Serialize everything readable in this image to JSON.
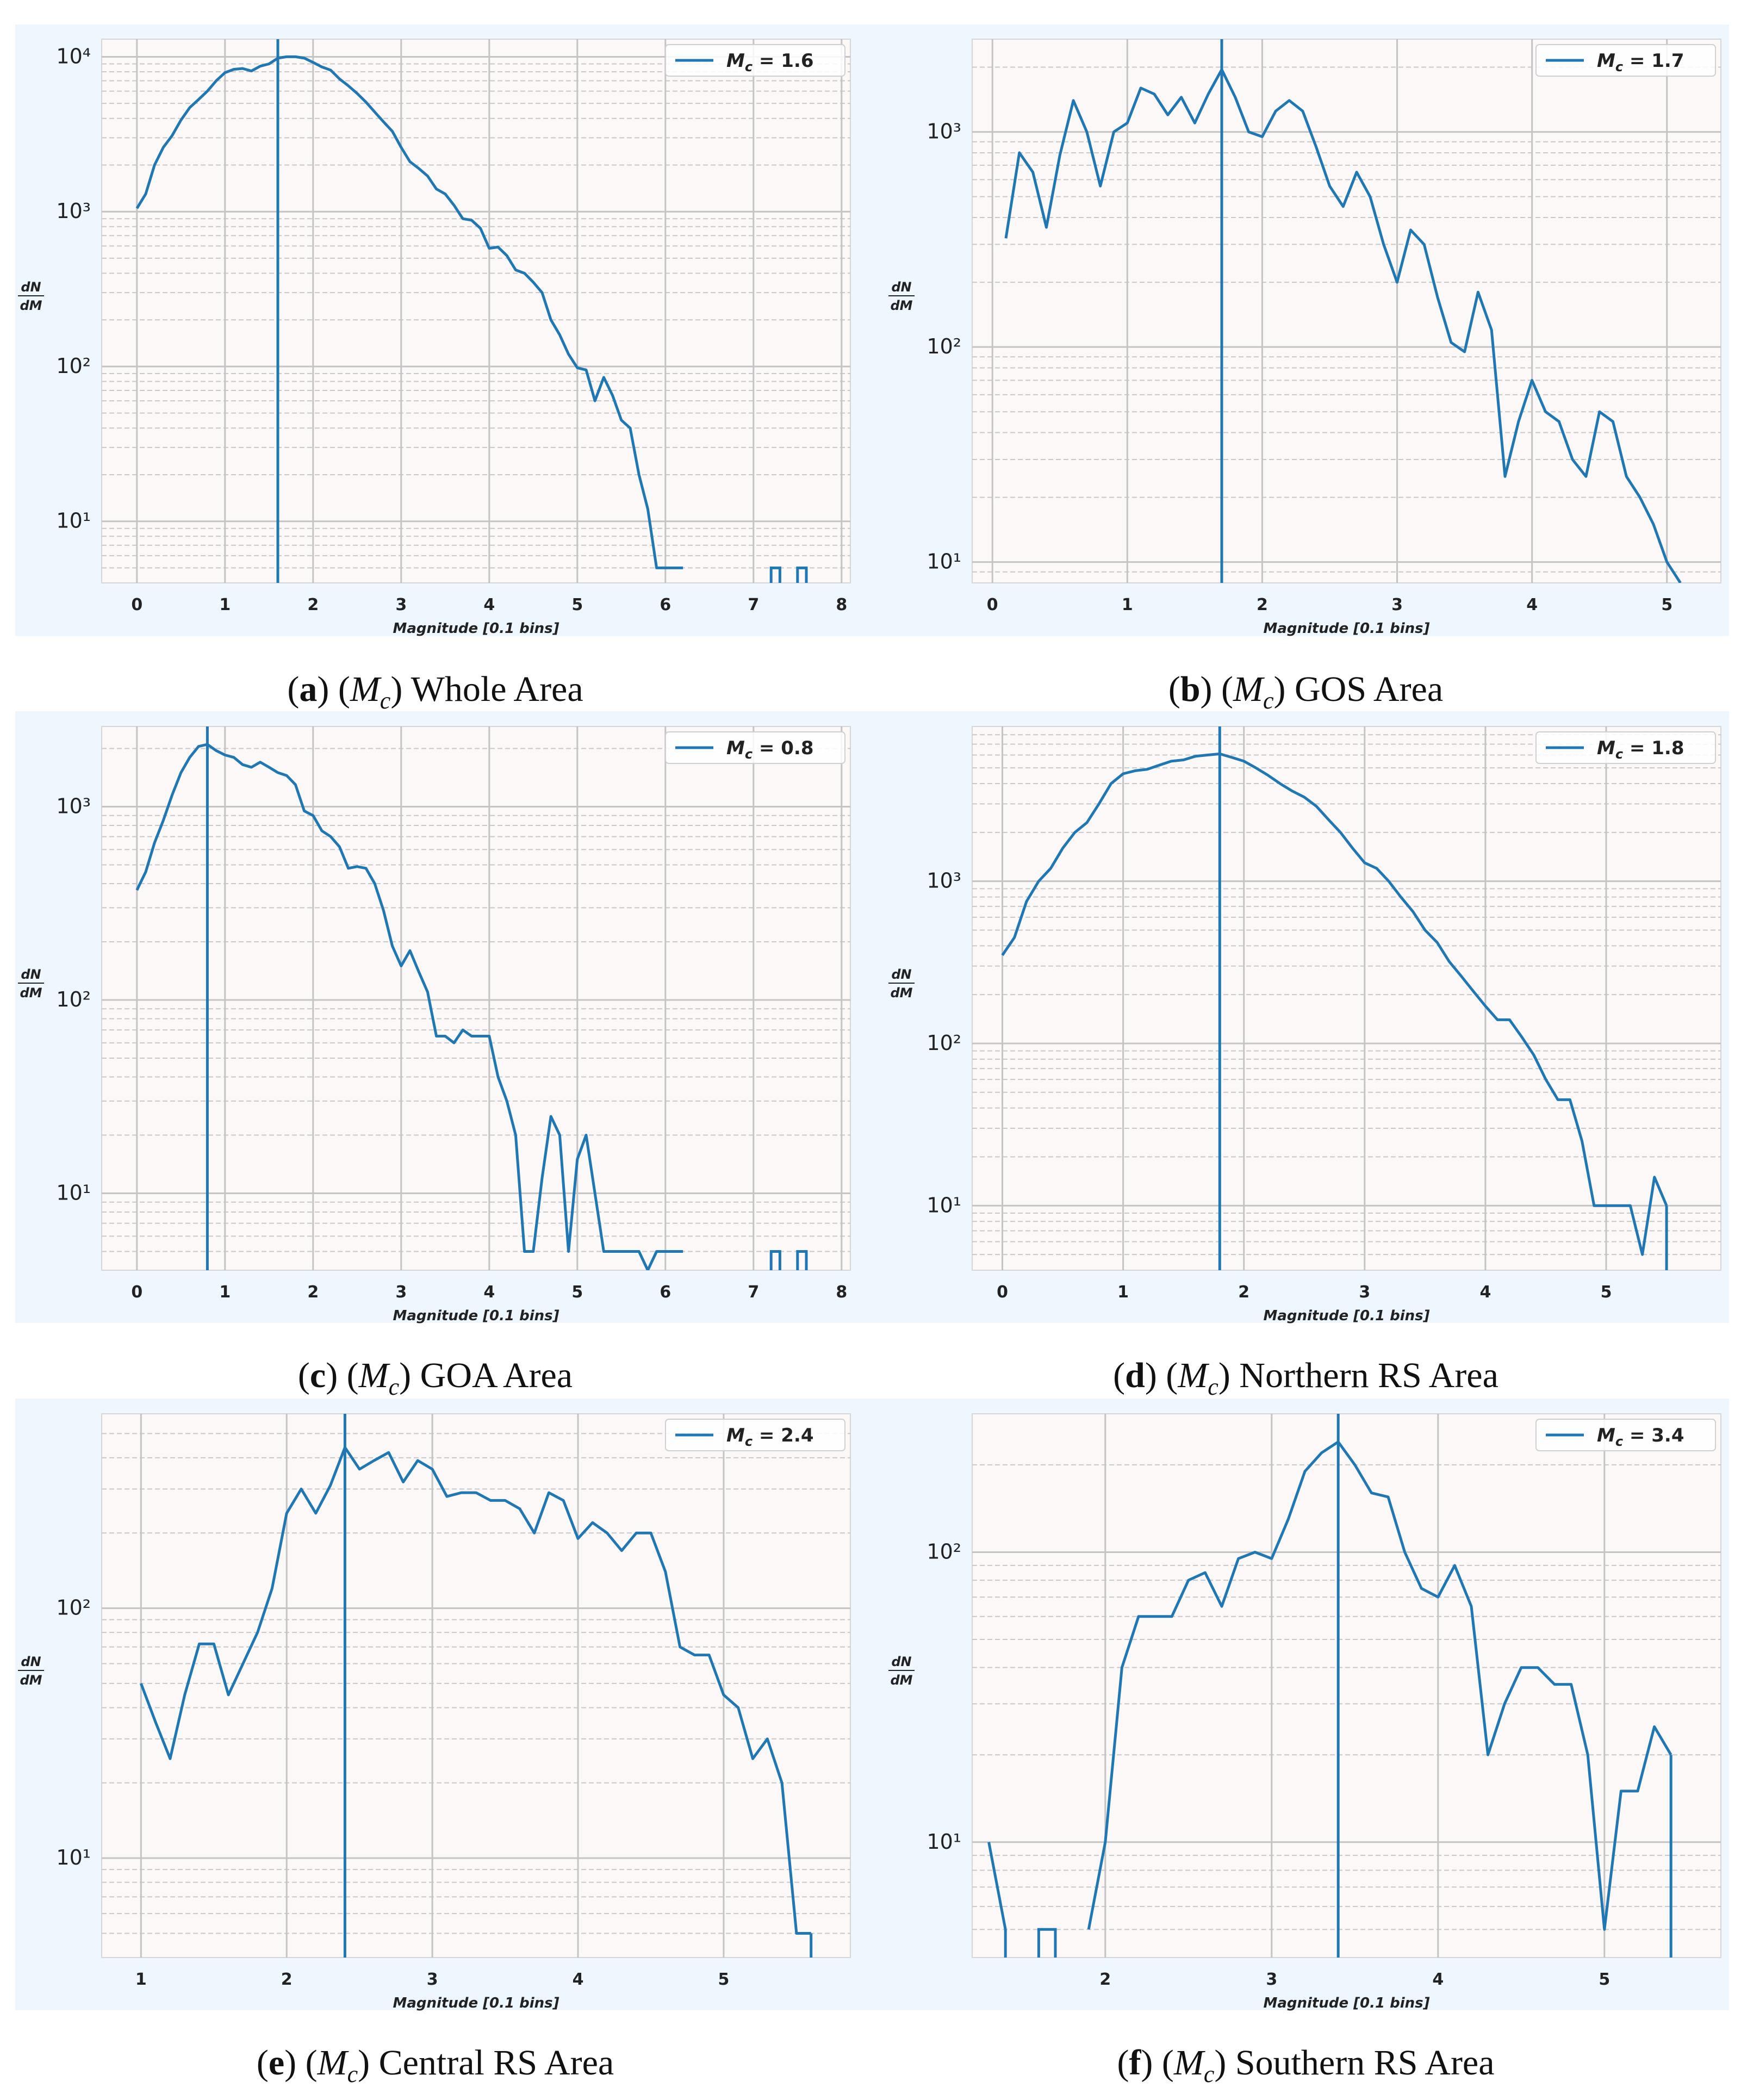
{
  "colors": {
    "series": "#1f77b4",
    "plot_bg": "#fcf8f8",
    "panel_bg": "#eef6fe",
    "grid_major": "#c4c4c4",
    "grid_minor": "#c8c8c8"
  },
  "chart_data": [
    {
      "id": "a",
      "type": "line",
      "xlabel": "Magnitude [0.1 bins]",
      "ylabel_num": "dN",
      "ylabel_den": "dM",
      "yscale": "log",
      "xlim": [
        -0.4,
        8.1
      ],
      "ylim": [
        4,
        13000
      ],
      "xticks": [
        0,
        1,
        2,
        3,
        4,
        5,
        6,
        7,
        8
      ],
      "xtick_labels": [
        "0",
        "1",
        "2",
        "3",
        "4",
        "5",
        "6",
        "7",
        "8"
      ],
      "yticks": [
        10,
        100,
        1000,
        10000
      ],
      "ytick_labels": [
        "10¹",
        "10²",
        "10³",
        "10⁴"
      ],
      "mc": 1.6,
      "legend": "M_c = 1.6",
      "legend_label": "M",
      "legend_sub": "c",
      "legend_value": " = 1.6",
      "caption_letter": "a",
      "caption_sym": "M",
      "caption_sub": "c",
      "caption_text": " Whole Area",
      "x": [
        0,
        0.1,
        0.2,
        0.3,
        0.4,
        0.5,
        0.6,
        0.7,
        0.8,
        0.9,
        1.0,
        1.1,
        1.2,
        1.3,
        1.4,
        1.5,
        1.6,
        1.7,
        1.8,
        1.9,
        2.0,
        2.1,
        2.2,
        2.3,
        2.4,
        2.5,
        2.6,
        2.7,
        2.8,
        2.9,
        3.0,
        3.1,
        3.2,
        3.3,
        3.4,
        3.5,
        3.6,
        3.7,
        3.8,
        3.9,
        4.0,
        4.1,
        4.2,
        4.3,
        4.4,
        4.5,
        4.6,
        4.7,
        4.8,
        4.9,
        5.0,
        5.1,
        5.2,
        5.3,
        5.4,
        5.5,
        5.6,
        5.7,
        5.8,
        5.9,
        6.0,
        6.1,
        6.2
      ],
      "y": [
        1050,
        1300,
        2000,
        2600,
        3100,
        3900,
        4700,
        5300,
        6000,
        7000,
        7900,
        8300,
        8400,
        8100,
        8700,
        9000,
        9800,
        10000,
        10000,
        9800,
        9200,
        8600,
        8200,
        7200,
        6500,
        5800,
        5100,
        4400,
        3800,
        3300,
        2600,
        2100,
        1900,
        1700,
        1400,
        1300,
        1100,
        900,
        880,
        780,
        580,
        590,
        520,
        420,
        400,
        350,
        300,
        200,
        160,
        120,
        98,
        95,
        60,
        85,
        65,
        45,
        40,
        20,
        12,
        5,
        5,
        5,
        5
      ],
      "extra_segments": [
        {
          "x": [
            7.2,
            7.2,
            7.3,
            7.3
          ],
          "y": [
            4,
            5,
            5,
            4
          ]
        },
        {
          "x": [
            7.5,
            7.5,
            7.6,
            7.6
          ],
          "y": [
            4,
            5,
            5,
            4
          ]
        }
      ]
    },
    {
      "id": "b",
      "type": "line",
      "xlabel": "Magnitude [0.1 bins]",
      "ylabel_num": "dN",
      "ylabel_den": "dM",
      "yscale": "log",
      "xlim": [
        -0.15,
        5.4
      ],
      "ylim": [
        8,
        2700
      ],
      "xticks": [
        0,
        1,
        2,
        3,
        4,
        5
      ],
      "xtick_labels": [
        "0",
        "1",
        "2",
        "3",
        "4",
        "5"
      ],
      "yticks": [
        10,
        100,
        1000
      ],
      "ytick_labels": [
        "10¹",
        "10²",
        "10³"
      ],
      "mc": 1.7,
      "legend": "M_c = 1.7",
      "legend_label": "M",
      "legend_sub": "c",
      "legend_value": " = 1.7",
      "caption_letter": "b",
      "caption_sym": "M",
      "caption_sub": "c",
      "caption_text": " GOS Area",
      "x": [
        0.1,
        0.2,
        0.3,
        0.4,
        0.5,
        0.6,
        0.7,
        0.8,
        0.9,
        1.0,
        1.1,
        1.2,
        1.3,
        1.4,
        1.5,
        1.6,
        1.7,
        1.8,
        1.9,
        2.0,
        2.1,
        2.2,
        2.3,
        2.4,
        2.5,
        2.6,
        2.7,
        2.8,
        2.9,
        3.0,
        3.1,
        3.2,
        3.3,
        3.4,
        3.5,
        3.6,
        3.7,
        3.8,
        3.9,
        4.0,
        4.1,
        4.2,
        4.3,
        4.4,
        4.5,
        4.6,
        4.7,
        4.8,
        4.9,
        5.0,
        5.1
      ],
      "y": [
        320,
        800,
        650,
        360,
        780,
        1400,
        1000,
        560,
        1000,
        1100,
        1600,
        1500,
        1200,
        1450,
        1100,
        1500,
        1950,
        1450,
        1000,
        950,
        1250,
        1400,
        1250,
        850,
        560,
        450,
        650,
        500,
        300,
        200,
        350,
        300,
        170,
        105,
        95,
        180,
        120,
        25,
        45,
        70,
        50,
        45,
        30,
        25,
        50,
        45,
        25,
        20,
        15,
        10,
        8
      ],
      "extra_segments": []
    },
    {
      "id": "c",
      "type": "line",
      "xlabel": "Magnitude [0.1 bins]",
      "ylabel_num": "dN",
      "ylabel_den": "dM",
      "yscale": "log",
      "xlim": [
        -0.4,
        8.1
      ],
      "ylim": [
        4,
        2600
      ],
      "xticks": [
        0,
        1,
        2,
        3,
        4,
        5,
        6,
        7,
        8
      ],
      "xtick_labels": [
        "0",
        "1",
        "2",
        "3",
        "4",
        "5",
        "6",
        "7",
        "8"
      ],
      "yticks": [
        10,
        100,
        1000
      ],
      "ytick_labels": [
        "10¹",
        "10²",
        "10³"
      ],
      "mc": 0.8,
      "legend": "M_c = 0.8",
      "legend_label": "M",
      "legend_sub": "c",
      "legend_value": " = 0.8",
      "caption_letter": "c",
      "caption_sym": "M",
      "caption_sub": "c",
      "caption_text": " GOA Area",
      "x": [
        0,
        0.1,
        0.2,
        0.3,
        0.4,
        0.5,
        0.6,
        0.7,
        0.8,
        0.9,
        1.0,
        1.1,
        1.2,
        1.3,
        1.4,
        1.5,
        1.6,
        1.7,
        1.8,
        1.9,
        2.0,
        2.1,
        2.2,
        2.3,
        2.4,
        2.5,
        2.6,
        2.7,
        2.8,
        2.9,
        3.0,
        3.1,
        3.2,
        3.3,
        3.4,
        3.5,
        3.6,
        3.7,
        3.8,
        3.9,
        4.0,
        4.1,
        4.2,
        4.3,
        4.4,
        4.5,
        4.6,
        4.7,
        4.8,
        4.9,
        5.0,
        5.1,
        5.2,
        5.3,
        5.4,
        5.5,
        5.6,
        5.7,
        5.8,
        5.9,
        6.0,
        6.1,
        6.2
      ],
      "y": [
        370,
        460,
        650,
        850,
        1150,
        1500,
        1800,
        2050,
        2100,
        1950,
        1850,
        1800,
        1650,
        1600,
        1700,
        1600,
        1500,
        1450,
        1300,
        950,
        900,
        750,
        700,
        620,
        480,
        490,
        480,
        400,
        290,
        190,
        150,
        180,
        140,
        110,
        65,
        65,
        60,
        70,
        65,
        65,
        65,
        40,
        30,
        20,
        5,
        5,
        12,
        25,
        20,
        5,
        15,
        20,
        10,
        5,
        5,
        5,
        5,
        5,
        4,
        5,
        5,
        5,
        5
      ],
      "extra_segments": [
        {
          "x": [
            7.2,
            7.2,
            7.3,
            7.3
          ],
          "y": [
            4,
            5,
            5,
            4
          ]
        },
        {
          "x": [
            7.5,
            7.5,
            7.6,
            7.6
          ],
          "y": [
            4,
            5,
            5,
            4
          ]
        }
      ]
    },
    {
      "id": "d",
      "type": "line",
      "xlabel": "Magnitude [0.1 bins]",
      "ylabel_num": "dN",
      "ylabel_den": "dM",
      "yscale": "log",
      "xlim": [
        -0.25,
        5.95
      ],
      "ylim": [
        4,
        9000
      ],
      "xticks": [
        0,
        1,
        2,
        3,
        4,
        5
      ],
      "xtick_labels": [
        "0",
        "1",
        "2",
        "3",
        "4",
        "5"
      ],
      "yticks": [
        10,
        100,
        1000
      ],
      "ytick_labels": [
        "10¹",
        "10²",
        "10³"
      ],
      "mc": 1.8,
      "legend": "M_c = 1.8",
      "legend_label": "M",
      "legend_sub": "c",
      "legend_value": " = 1.8",
      "caption_letter": "d",
      "caption_sym": "M",
      "caption_sub": "c",
      "caption_text": " Northern RS Area",
      "x": [
        0,
        0.1,
        0.2,
        0.3,
        0.4,
        0.5,
        0.6,
        0.7,
        0.8,
        0.9,
        1.0,
        1.1,
        1.2,
        1.3,
        1.4,
        1.5,
        1.6,
        1.7,
        1.8,
        1.9,
        2.0,
        2.1,
        2.2,
        2.3,
        2.4,
        2.5,
        2.6,
        2.7,
        2.8,
        2.9,
        3.0,
        3.1,
        3.2,
        3.3,
        3.4,
        3.5,
        3.6,
        3.7,
        3.8,
        3.9,
        4.0,
        4.1,
        4.2,
        4.3,
        4.4,
        4.5,
        4.6,
        4.7,
        4.8,
        4.9,
        5.0,
        5.1,
        5.2,
        5.3,
        5.4,
        5.5
      ],
      "y": [
        350,
        450,
        750,
        1000,
        1200,
        1600,
        2000,
        2300,
        3000,
        4000,
        4600,
        4800,
        4900,
        5200,
        5500,
        5600,
        5900,
        6000,
        6100,
        5800,
        5500,
        5000,
        4500,
        4000,
        3600,
        3300,
        2900,
        2400,
        2000,
        1600,
        1300,
        1200,
        1000,
        800,
        650,
        500,
        420,
        320,
        260,
        210,
        170,
        140,
        140,
        110,
        85,
        60,
        45,
        45,
        25,
        10,
        10,
        10,
        10,
        5,
        15,
        10
      ],
      "extra_segments": [
        {
          "x": [
            5.5,
            5.5
          ],
          "y": [
            10,
            4
          ]
        }
      ]
    },
    {
      "id": "e",
      "type": "line",
      "xlabel": "Magnitude [0.1 bins]",
      "ylabel_num": "dN",
      "ylabel_den": "dM",
      "yscale": "log",
      "xlim": [
        0.73,
        5.87
      ],
      "ylim": [
        4,
        600
      ],
      "xticks": [
        1,
        2,
        3,
        4,
        5
      ],
      "xtick_labels": [
        "1",
        "2",
        "3",
        "4",
        "5"
      ],
      "yticks": [
        10,
        100
      ],
      "ytick_labels": [
        "10¹",
        "10²"
      ],
      "mc": 2.4,
      "legend": "M_c = 2.4",
      "legend_label": "M",
      "legend_sub": "c",
      "legend_value": " = 2.4",
      "caption_letter": "e",
      "caption_sym": "M",
      "caption_sub": "c",
      "caption_text": " Central RS Area",
      "x": [
        1.0,
        1.1,
        1.2,
        1.3,
        1.4,
        1.5,
        1.6,
        1.7,
        1.8,
        1.9,
        2.0,
        2.1,
        2.2,
        2.3,
        2.4,
        2.5,
        2.6,
        2.7,
        2.8,
        2.9,
        3.0,
        3.1,
        3.2,
        3.3,
        3.4,
        3.5,
        3.6,
        3.7,
        3.8,
        3.9,
        4.0,
        4.1,
        4.2,
        4.3,
        4.4,
        4.5,
        4.6,
        4.7,
        4.8,
        4.9,
        5.0,
        5.1,
        5.2,
        5.3,
        5.4,
        5.5,
        5.6
      ],
      "y": [
        50,
        35,
        25,
        45,
        72,
        72,
        45,
        60,
        80,
        120,
        240,
        300,
        240,
        310,
        440,
        360,
        390,
        420,
        320,
        390,
        360,
        280,
        290,
        290,
        270,
        270,
        250,
        200,
        290,
        270,
        190,
        220,
        200,
        170,
        200,
        200,
        140,
        70,
        65,
        65,
        45,
        40,
        25,
        30,
        20,
        5,
        5
      ],
      "extra_segments": [
        {
          "x": [
            5.6,
            5.6
          ],
          "y": [
            5,
            4
          ]
        }
      ]
    },
    {
      "id": "f",
      "type": "line",
      "xlabel": "Magnitude [0.1 bins]",
      "ylabel_num": "dN",
      "ylabel_den": "dM",
      "yscale": "log",
      "xlim": [
        1.2,
        5.7
      ],
      "ylim": [
        4,
        300
      ],
      "xticks": [
        2,
        3,
        4,
        5
      ],
      "xtick_labels": [
        "2",
        "3",
        "4",
        "5"
      ],
      "yticks": [
        10,
        100
      ],
      "ytick_labels": [
        "10¹",
        "10²"
      ],
      "mc": 3.4,
      "legend": "M_c = 3.4",
      "legend_label": "M",
      "legend_sub": "c",
      "legend_value": " = 3.4",
      "caption_letter": "f",
      "caption_sym": "M",
      "caption_sub": "c",
      "caption_text": " Southern RS Area",
      "x": [
        1.9,
        2.0,
        2.1,
        2.2,
        2.3,
        2.4,
        2.5,
        2.6,
        2.7,
        2.8,
        2.9,
        3.0,
        3.1,
        3.2,
        3.3,
        3.4,
        3.5,
        3.6,
        3.7,
        3.8,
        3.9,
        4.0,
        4.1,
        4.2,
        4.3,
        4.4,
        4.5,
        4.6,
        4.7,
        4.8,
        4.9,
        5.0,
        5.1,
        5.2,
        5.3,
        5.4
      ],
      "y": [
        5,
        10,
        40,
        60,
        60,
        60,
        80,
        85,
        65,
        95,
        100,
        95,
        130,
        190,
        220,
        240,
        200,
        160,
        155,
        100,
        75,
        70,
        90,
        65,
        20,
        30,
        40,
        40,
        35,
        35,
        20,
        5,
        15,
        15,
        25,
        20
      ],
      "extra_segments": [
        {
          "x": [
            1.3,
            1.4,
            1.4
          ],
          "y": [
            10,
            5,
            4
          ]
        },
        {
          "x": [
            1.6,
            1.6,
            1.7,
            1.7
          ],
          "y": [
            4,
            5,
            5,
            4
          ]
        },
        {
          "x": [
            5.4,
            5.4
          ],
          "y": [
            20,
            4
          ]
        }
      ]
    }
  ]
}
